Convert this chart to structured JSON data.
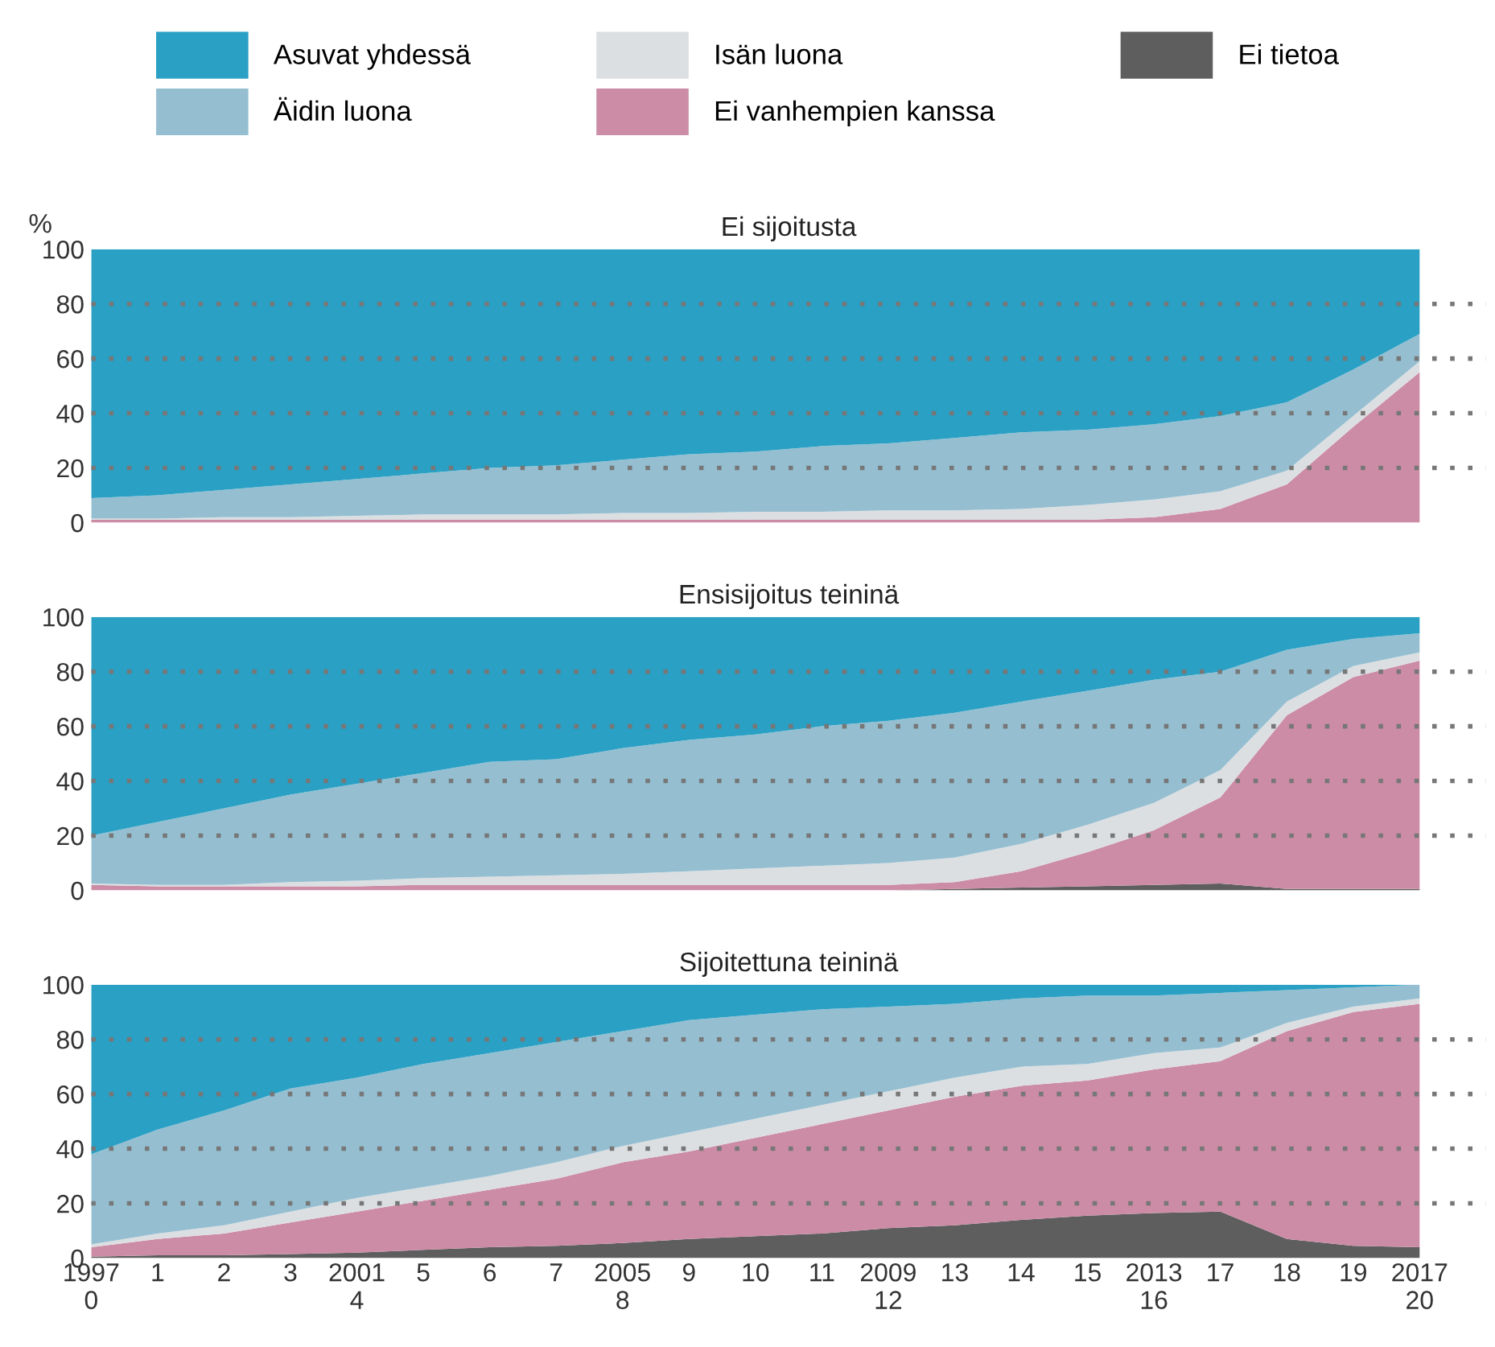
{
  "chart_data": [
    {
      "type": "area",
      "stacked": true,
      "title": "Ei sijoitusta",
      "ylabel": "%",
      "grid": "y",
      "tick_labels": "y",
      "x": [
        0,
        1,
        2,
        3,
        4,
        5,
        6,
        7,
        8,
        9,
        10,
        11,
        12,
        13,
        14,
        15,
        16,
        17,
        18,
        19,
        20
      ],
      "xlim": [
        0,
        21
      ],
      "ylim": [
        0,
        100
      ],
      "yticks": [
        0,
        20,
        40,
        60,
        80,
        100
      ],
      "series": [
        {
          "color": "#cc8ca5",
          "values": [
            1,
            1,
            1,
            1,
            1,
            1,
            1,
            1,
            1,
            1,
            1,
            1,
            1,
            1,
            1,
            1,
            2,
            5,
            14,
            35,
            55
          ]
        },
        {
          "color": "#dcdfe2",
          "values": [
            0.5,
            0.5,
            1,
            1,
            1.5,
            2,
            2,
            2,
            2.5,
            2.5,
            3,
            3,
            3.5,
            3.5,
            4,
            5.5,
            6.5,
            6.5,
            5,
            4,
            4
          ]
        },
        {
          "color": "#95bfd1",
          "values": [
            7.5,
            8.5,
            10,
            12,
            13.5,
            15,
            17,
            18,
            19.5,
            21.5,
            22,
            24,
            24.5,
            26.5,
            28,
            27.5,
            27.5,
            27.5,
            25,
            17,
            10
          ]
        },
        {
          "color": "#29a0c4",
          "values": [
            91,
            90,
            88,
            86,
            84,
            82,
            80,
            79,
            77,
            75,
            74,
            72,
            71,
            69,
            67,
            66,
            64,
            61,
            56,
            44,
            31
          ]
        }
      ]
    },
    {
      "type": "area",
      "stacked": true,
      "title": "Ensisijoitus teininä",
      "grid": "y",
      "tick_labels": "y",
      "x": [
        0,
        1,
        2,
        3,
        4,
        5,
        6,
        7,
        8,
        9,
        10,
        11,
        12,
        13,
        14,
        15,
        16,
        17,
        18,
        19,
        20
      ],
      "xlim": [
        0,
        21
      ],
      "ylim": [
        0,
        100
      ],
      "yticks": [
        0,
        20,
        40,
        60,
        80,
        100
      ],
      "series": [
        {
          "color": "#5e5e5e",
          "values": [
            0,
            0,
            0,
            0,
            0,
            0,
            0,
            0,
            0,
            0,
            0,
            0,
            0,
            0.5,
            1,
            1.5,
            2,
            2.5,
            0.5,
            0.5,
            0.5
          ]
        },
        {
          "color": "#cc8ca5",
          "values": [
            2,
            1.5,
            1.5,
            1.5,
            1.5,
            2,
            2,
            2,
            2,
            2,
            2,
            2,
            2,
            2.5,
            6,
            12.5,
            20,
            31.5,
            63.5,
            77.5,
            83.5
          ]
        },
        {
          "color": "#dcdfe2",
          "values": [
            0.5,
            0.5,
            0.5,
            1.5,
            2,
            2.5,
            3,
            3.5,
            4,
            5,
            6,
            7,
            8,
            9,
            10,
            10,
            10,
            10,
            5,
            4,
            3
          ]
        },
        {
          "color": "#95bfd1",
          "values": [
            17.5,
            23,
            28,
            32,
            35.5,
            38.5,
            42,
            42.5,
            46,
            48,
            49,
            51,
            52,
            53,
            52,
            49,
            45,
            36,
            19,
            10,
            7
          ]
        },
        {
          "color": "#29a0c4",
          "values": [
            80,
            75,
            70,
            65,
            61,
            57,
            53,
            52,
            48,
            45,
            43,
            40,
            38,
            35,
            31,
            27,
            23,
            20,
            12,
            8,
            6
          ]
        }
      ]
    },
    {
      "type": "area",
      "stacked": true,
      "title": "Sijoitettuna teininä",
      "legend": "top",
      "grid": "y",
      "x": [
        0,
        1,
        2,
        3,
        4,
        5,
        6,
        7,
        8,
        9,
        10,
        11,
        12,
        13,
        14,
        15,
        16,
        17,
        18,
        19,
        20
      ],
      "xlim": [
        0,
        21
      ],
      "xticks": [
        {
          "value": 0,
          "label": "1997\n0"
        },
        1,
        2,
        3,
        {
          "value": 4,
          "label": "2001\n4"
        },
        5,
        6,
        7,
        {
          "value": 8,
          "label": "2005\n8"
        },
        9,
        10,
        11,
        {
          "value": 12,
          "label": "2009\n12"
        },
        13,
        14,
        15,
        {
          "value": 16,
          "label": "2013\n16"
        },
        17,
        18,
        19,
        {
          "value": 20,
          "label": "2017\n20"
        }
      ],
      "ylim": [
        0,
        100
      ],
      "yticks": [
        0,
        20,
        40,
        60,
        80,
        100
      ],
      "series": [
        {
          "name": "Ei tietoa",
          "color": "#5e5e5e",
          "values": [
            0.5,
            1,
            1,
            1.5,
            2,
            3,
            4,
            4.5,
            5.5,
            7,
            8,
            9,
            11,
            12,
            14,
            15.5,
            16.5,
            17,
            7,
            4.5,
            4
          ]
        },
        {
          "name": "Ei vanhempien kanssa",
          "color": "#cc8ca5",
          "values": [
            3.5,
            6,
            8,
            11.5,
            15,
            18,
            21,
            24.5,
            29.5,
            32,
            36,
            40,
            43,
            47,
            49,
            49.5,
            52.5,
            55,
            76,
            85.5,
            89
          ]
        },
        {
          "name": "Isän luona",
          "color": "#dcdfe2",
          "values": [
            1,
            2,
            3,
            4,
            5,
            5,
            5,
            6,
            6,
            7,
            7,
            7,
            7,
            7,
            7,
            6,
            6,
            5,
            3,
            2,
            2
          ]
        },
        {
          "name": "Äidin luona",
          "color": "#95bfd1",
          "values": [
            33,
            38,
            42,
            45,
            44,
            45,
            45,
            44,
            42,
            41,
            38,
            35,
            31,
            27,
            25,
            25,
            21,
            20,
            12,
            7,
            5
          ]
        },
        {
          "name": "Asuvat yhdessä",
          "color": "#29a0c4",
          "values": [
            62,
            53,
            46,
            38,
            34,
            29,
            25,
            21,
            17,
            13,
            11,
            9,
            8,
            7,
            5,
            4,
            4,
            3,
            2,
            1,
            0
          ]
        }
      ]
    }
  ]
}
